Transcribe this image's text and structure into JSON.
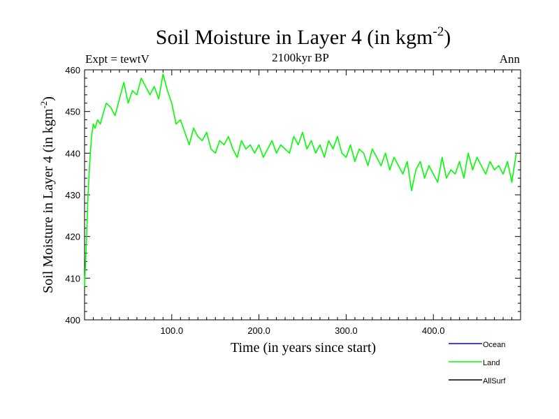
{
  "chart_data": {
    "type": "line",
    "title_main": "Soil Moisture in Layer 4 (in kgm",
    "title_sup": "-2",
    "title_close": ")",
    "subtitle_left": "Expt = tewtV",
    "subtitle_center": "2100kyr BP",
    "subtitle_right": "Ann",
    "xlabel": "Time (in years since start)",
    "ylabel_main": "Soil Moisture in Layer 4 (in kgm",
    "ylabel_sup": "-2",
    "ylabel_close": ")",
    "xlim": [
      0,
      500
    ],
    "ylim": [
      400,
      460
    ],
    "x_ticks": [
      100,
      200,
      300,
      400
    ],
    "x_tick_labels": [
      "100.0",
      "200.0",
      "300.0",
      "400.0"
    ],
    "y_ticks": [
      400,
      410,
      420,
      430,
      440,
      450,
      460
    ],
    "y_tick_labels": [
      "400",
      "410",
      "420",
      "430",
      "440",
      "450",
      "460"
    ],
    "legend": [
      {
        "name": "Ocean",
        "color": "#0000ff"
      },
      {
        "name": "Land",
        "color": "#00ff00"
      },
      {
        "name": "AllSurf",
        "color": "#000000"
      }
    ],
    "series": [
      {
        "name": "Land",
        "color": "#00ff00",
        "x": [
          0,
          2,
          4,
          6,
          8,
          10,
          12,
          15,
          18,
          22,
          25,
          30,
          35,
          40,
          45,
          50,
          55,
          60,
          65,
          70,
          75,
          80,
          85,
          90,
          95,
          100,
          105,
          110,
          115,
          120,
          125,
          130,
          135,
          140,
          145,
          150,
          155,
          160,
          165,
          170,
          175,
          180,
          185,
          190,
          195,
          200,
          205,
          210,
          215,
          220,
          225,
          230,
          235,
          240,
          245,
          250,
          255,
          260,
          265,
          270,
          275,
          280,
          285,
          290,
          295,
          300,
          305,
          310,
          315,
          320,
          325,
          330,
          335,
          340,
          345,
          350,
          355,
          360,
          365,
          370,
          375,
          380,
          385,
          390,
          395,
          400,
          405,
          410,
          415,
          420,
          425,
          430,
          435,
          440,
          445,
          450,
          455,
          460,
          465,
          470,
          475,
          480,
          485,
          490,
          495
        ],
        "values": [
          408,
          418,
          430,
          438,
          444,
          447,
          446,
          448,
          447,
          450,
          452,
          451,
          449,
          453,
          457,
          452,
          455,
          454,
          458,
          456,
          454,
          456,
          453,
          459,
          455,
          452,
          447,
          448,
          445,
          442,
          446,
          444,
          443,
          445,
          441,
          440,
          443,
          442,
          444,
          441,
          439,
          443,
          441,
          442,
          440,
          442,
          439,
          441,
          443,
          440,
          442,
          441,
          440,
          444,
          442,
          445,
          441,
          443,
          440,
          442,
          439,
          443,
          441,
          444,
          440,
          439,
          442,
          438,
          441,
          440,
          437,
          441,
          439,
          437,
          440,
          436,
          439,
          437,
          435,
          438,
          431,
          436,
          438,
          434,
          437,
          435,
          433,
          439,
          434,
          436,
          435,
          438,
          434,
          440,
          436,
          439,
          437,
          435,
          438,
          436,
          437,
          435,
          438,
          433,
          440
        ]
      }
    ]
  }
}
